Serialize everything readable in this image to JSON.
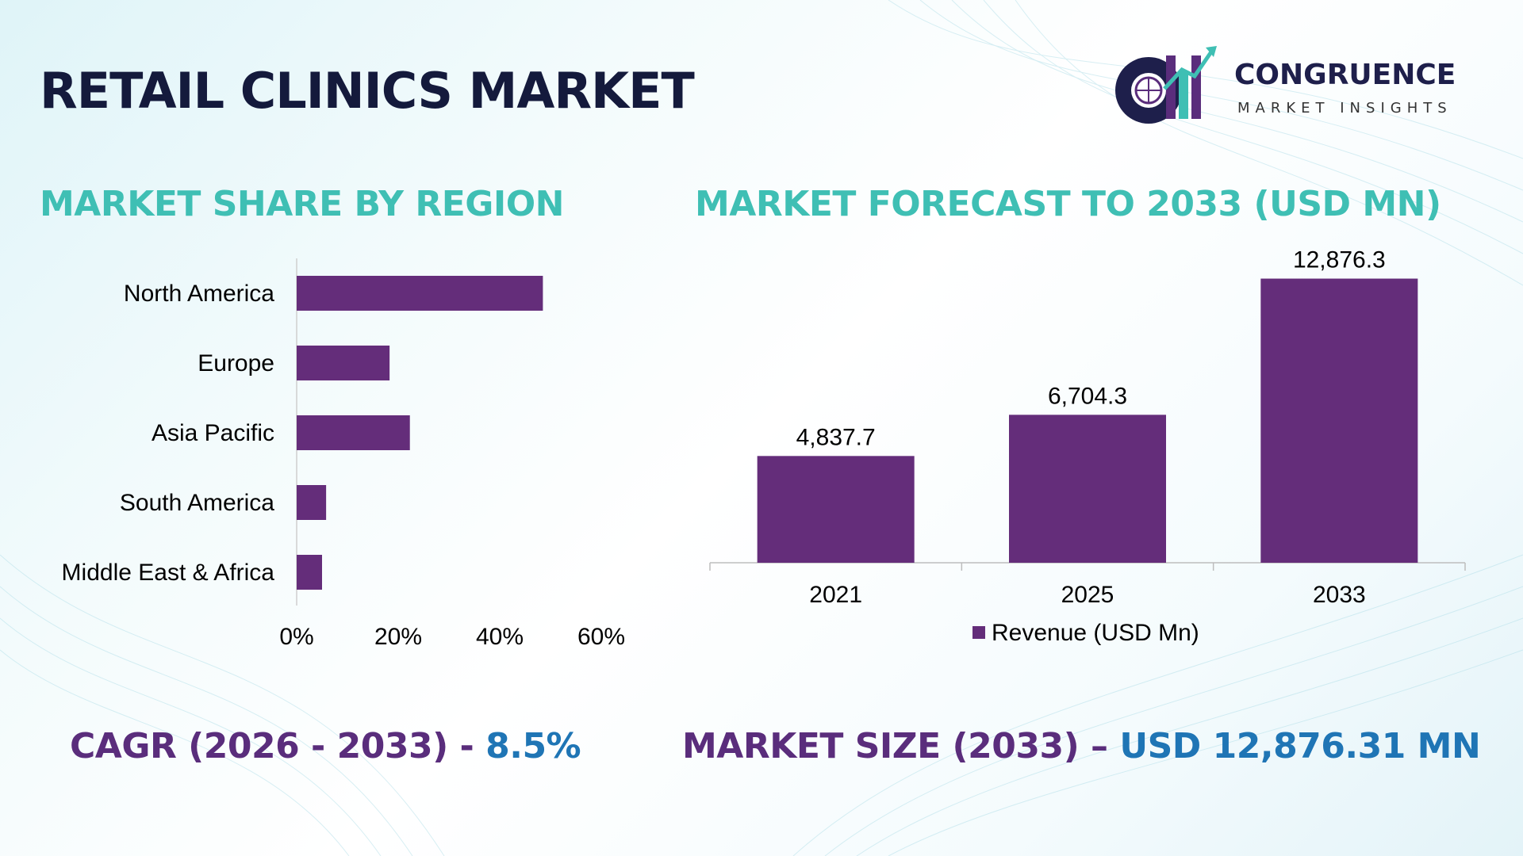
{
  "title": "RETAIL CLINICS MARKET",
  "logo": {
    "name": "CONGRUENCE",
    "subtitle": "MARKET INSIGHTS"
  },
  "colors": {
    "bar": "#642d7a",
    "section_title": "#3fbfb4",
    "kpi_label": "#5a2d7c",
    "kpi_value": "#1f75b5",
    "title": "#141a3c"
  },
  "kpis": {
    "cagr_label": "CAGR (2026 - 2033) - ",
    "cagr_value": "8.5%",
    "size_label": "MARKET SIZE (2033) – ",
    "size_value": "USD 12,876.31 MN"
  },
  "chart_data": [
    {
      "type": "bar",
      "orientation": "horizontal",
      "title": "MARKET SHARE BY REGION",
      "categories": [
        "North America",
        "Europe",
        "Asia Pacific",
        "South America",
        "Middle East & Africa"
      ],
      "values": [
        48.5,
        18.3,
        22.3,
        5.8,
        5.0
      ],
      "xlim": [
        0,
        60
      ],
      "xticks": [
        "0%",
        "20%",
        "40%",
        "60%"
      ],
      "tick_values": [
        0,
        20,
        40,
        60
      ],
      "grid": false,
      "legend": "none"
    },
    {
      "type": "bar",
      "orientation": "vertical",
      "title": "MARKET FORECAST TO 2033 (USD MN)",
      "categories": [
        "2021",
        "2025",
        "2033"
      ],
      "series": [
        {
          "name": "Revenue (USD Mn)",
          "values": [
            4837.7,
            6704.3,
            12876.3
          ],
          "labels": [
            "4,837.7",
            "6,704.3",
            "12,876.3"
          ]
        }
      ],
      "ylim": [
        0,
        14000
      ],
      "grid": false,
      "legend": "bottom"
    }
  ]
}
